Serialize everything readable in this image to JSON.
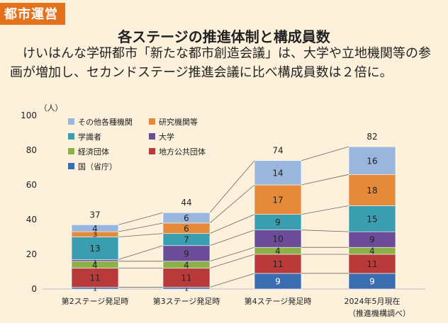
{
  "header": {
    "tag": "都市運営",
    "title": "各ステージの推進体制と構成員数",
    "lead": "けいはんな学研都市「新たな都市創造会議」は、大学や立地機関等の参画が増加し、セカンドステージ推進会議に比べ構成員数は２倍に。"
  },
  "chart_data": {
    "type": "bar",
    "stacked": true,
    "unit": "（人）",
    "categories": [
      "第2ステージ発足時",
      "第3ステージ発足時",
      "第4ステージ発足時",
      "2024年5月現在"
    ],
    "category_note": "（推進機構調べ）",
    "ylim": [
      0,
      100
    ],
    "yticks": [
      0,
      20,
      40,
      60,
      80,
      100
    ],
    "totals": [
      37,
      44,
      74,
      82
    ],
    "series": [
      {
        "name": "国（省庁）",
        "color": "#3a6db0",
        "values": [
          1,
          1,
          9,
          9
        ]
      },
      {
        "name": "地方公共団体",
        "color": "#b83a3a",
        "values": [
          11,
          11,
          11,
          11
        ]
      },
      {
        "name": "経済団体",
        "color": "#8db04a",
        "values": [
          4,
          4,
          4,
          4
        ]
      },
      {
        "name": "大学",
        "color": "#6c4c99",
        "values": [
          1,
          9,
          10,
          9
        ]
      },
      {
        "name": "学識者",
        "color": "#3a9eb0",
        "values": [
          13,
          7,
          9,
          15
        ]
      },
      {
        "name": "研究機関等",
        "color": "#e48a3a",
        "values": [
          3,
          6,
          17,
          18
        ]
      },
      {
        "name": "その他各種機関",
        "color": "#9ab6dc",
        "values": [
          4,
          6,
          14,
          16
        ]
      }
    ],
    "legend": {
      "placement": "top-left",
      "order": [
        "その他各種機関",
        "研究機関等",
        "学識者",
        "大学",
        "経済団体",
        "地方公共団体",
        "国（省庁）"
      ]
    },
    "grid": false
  }
}
